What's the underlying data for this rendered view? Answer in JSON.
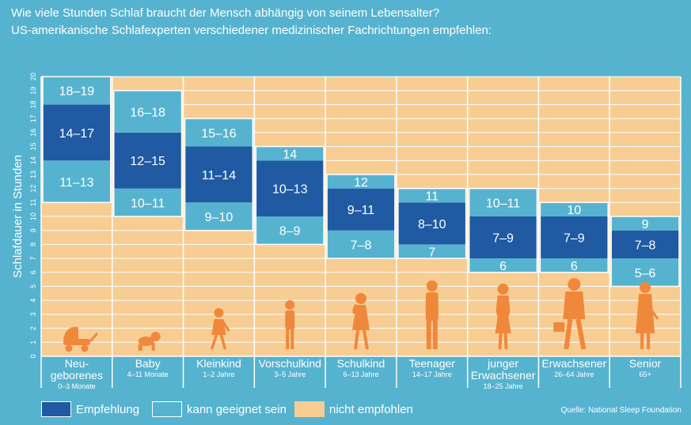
{
  "title_line1": "Wie viele Stunden Schlaf braucht der Mensch abhängig von seinem Lebensalter?",
  "title_line2": "US-amerikanische Schlafexperten verschiedener medizinischer Fachrichtungen empfehlen:",
  "source": "Quelle: National Sleep Foundation",
  "colors": {
    "background": "#56b3cf",
    "empfehlung": "#1f5aa3",
    "geeignet": "#56b3cf",
    "nicht_empfohlen": "#f7cd93",
    "silhouette": "#f0883c",
    "gridline": "#ffffff"
  },
  "legend": [
    {
      "key": "empfehlung",
      "label": "Empfehlung"
    },
    {
      "key": "geeignet",
      "label": "kann geeignet sein"
    },
    {
      "key": "nicht_empfohlen",
      "label": "nicht empfohlen"
    }
  ],
  "chart_data": {
    "type": "bar",
    "title": "Wie viele Stunden Schlaf braucht der Mensch abhängig von seinem Lebensalter?",
    "ylabel": "Schlafdauer in Stunden",
    "ylim": [
      0,
      20
    ],
    "yticks": [
      "0",
      "1",
      "2",
      "3",
      "4",
      "5",
      "6",
      "7",
      "8",
      "9",
      "10",
      "11",
      "12",
      "13",
      "14",
      "15",
      "16",
      "17",
      "18",
      "19",
      "20"
    ],
    "grid": true,
    "categories": [
      {
        "name": "Neu-\ngeborenes",
        "age": "0–3 Monate",
        "figure": "pram-icon",
        "segments": [
          {
            "kind": "geeignet",
            "from": 11,
            "to": 14,
            "label": "11–13"
          },
          {
            "kind": "empfehlung",
            "from": 14,
            "to": 18,
            "label": "14–17"
          },
          {
            "kind": "geeignet",
            "from": 18,
            "to": 20,
            "label": "18–19"
          }
        ]
      },
      {
        "name": "Baby",
        "age": "4–11 Monate",
        "figure": "crawling-baby-icon",
        "segments": [
          {
            "kind": "geeignet",
            "from": 10,
            "to": 12,
            "label": "10–11"
          },
          {
            "kind": "empfehlung",
            "from": 12,
            "to": 16,
            "label": "12–15"
          },
          {
            "kind": "geeignet",
            "from": 16,
            "to": 19,
            "label": "16–18"
          }
        ]
      },
      {
        "name": "Kleinkind",
        "age": "1–2 Jahre",
        "figure": "toddler-icon",
        "segments": [
          {
            "kind": "geeignet",
            "from": 9,
            "to": 11,
            "label": "9–10"
          },
          {
            "kind": "empfehlung",
            "from": 11,
            "to": 15,
            "label": "11–14"
          },
          {
            "kind": "geeignet",
            "from": 15,
            "to": 17,
            "label": "15–16"
          }
        ]
      },
      {
        "name": "Vorschulkind",
        "age": "3–5 Jahre",
        "figure": "preschooler-icon",
        "segments": [
          {
            "kind": "geeignet",
            "from": 8,
            "to": 10,
            "label": "8–9"
          },
          {
            "kind": "empfehlung",
            "from": 10,
            "to": 14,
            "label": "10–13"
          },
          {
            "kind": "geeignet",
            "from": 14,
            "to": 15,
            "label": "14"
          }
        ]
      },
      {
        "name": "Schulkind",
        "age": "6–13 Jahre",
        "figure": "schoolchild-icon",
        "segments": [
          {
            "kind": "geeignet",
            "from": 7,
            "to": 9,
            "label": "7–8"
          },
          {
            "kind": "empfehlung",
            "from": 9,
            "to": 12,
            "label": "9–11"
          },
          {
            "kind": "geeignet",
            "from": 12,
            "to": 13,
            "label": "12"
          }
        ]
      },
      {
        "name": "Teenager",
        "age": "14–17 Jahre",
        "figure": "teenager-icon",
        "segments": [
          {
            "kind": "geeignet",
            "from": 7,
            "to": 8,
            "label": "7"
          },
          {
            "kind": "empfehlung",
            "from": 8,
            "to": 11,
            "label": "8–10"
          },
          {
            "kind": "geeignet",
            "from": 11,
            "to": 12,
            "label": "11"
          }
        ]
      },
      {
        "name": "junger\nErwachsener",
        "age": "18–25 Jahre",
        "figure": "young-adult-icon",
        "segments": [
          {
            "kind": "geeignet",
            "from": 6,
            "to": 7,
            "label": "6"
          },
          {
            "kind": "empfehlung",
            "from": 7,
            "to": 10,
            "label": "7–9"
          },
          {
            "kind": "geeignet",
            "from": 10,
            "to": 12,
            "label": "10–11"
          }
        ]
      },
      {
        "name": "Erwachsener",
        "age": "26–64 Jahre",
        "figure": "adult-icon",
        "segments": [
          {
            "kind": "geeignet",
            "from": 6,
            "to": 7,
            "label": "6"
          },
          {
            "kind": "empfehlung",
            "from": 7,
            "to": 10,
            "label": "7–9"
          },
          {
            "kind": "geeignet",
            "from": 10,
            "to": 11,
            "label": "10"
          }
        ]
      },
      {
        "name": "Senior",
        "age": "65+",
        "figure": "senior-icon",
        "segments": [
          {
            "kind": "geeignet",
            "from": 5,
            "to": 7,
            "label": "5–6"
          },
          {
            "kind": "empfehlung",
            "from": 7,
            "to": 9,
            "label": "7–8"
          },
          {
            "kind": "geeignet",
            "from": 9,
            "to": 10,
            "label": "9"
          }
        ]
      }
    ]
  }
}
